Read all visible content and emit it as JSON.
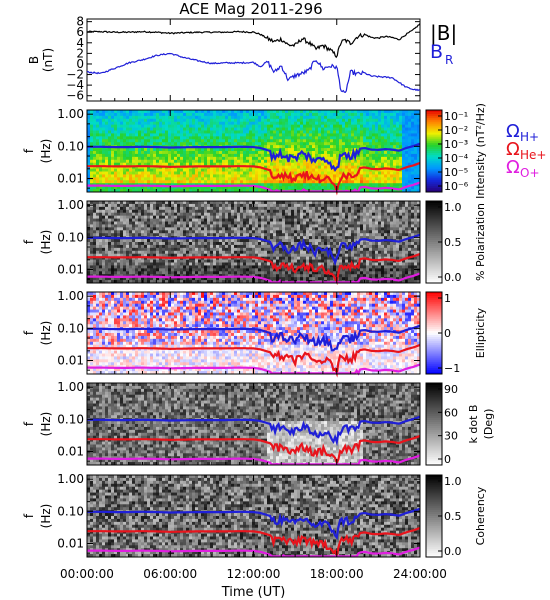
{
  "title": "ACE Mag 2011-296",
  "colors": {
    "black": "#000000",
    "blue": "#1f1fd8",
    "red": "#e8141c",
    "magenta": "#e01ee0"
  },
  "chart_data": [
    {
      "type": "line",
      "panel": "B",
      "ylabel_lines": [
        "B",
        "(nT)"
      ],
      "yticks": [
        "8",
        "6",
        "4",
        "2",
        "0",
        "−2",
        "−4",
        "−6"
      ],
      "ylim": [
        -7,
        8.5
      ],
      "legend": [
        "|B|",
        "B_R"
      ],
      "series": [
        {
          "name": "|B|",
          "color": "#000000",
          "x": [
            0,
            1,
            2,
            3,
            4,
            5,
            6,
            7,
            8,
            9,
            10,
            11,
            12,
            12.5,
            13,
            13.5,
            14,
            14.5,
            15,
            15.5,
            16,
            16.5,
            17,
            17.5,
            18,
            18.3,
            18.6,
            19,
            19.5,
            20,
            20.5,
            21,
            21.5,
            22,
            22.5,
            23,
            23.5,
            24
          ],
          "values": [
            6.1,
            6.1,
            6.0,
            6.0,
            6.1,
            6.0,
            5.8,
            5.9,
            6.0,
            6.0,
            6.0,
            6.1,
            6.0,
            5.6,
            4.8,
            4.2,
            4.7,
            3.6,
            3.5,
            4.8,
            4.0,
            2.8,
            3.5,
            2.7,
            1.5,
            4.1,
            4.5,
            3.9,
            5.2,
            5.6,
            5.0,
            4.9,
            5.2,
            5.0,
            4.6,
            5.6,
            6.4,
            7.6
          ]
        },
        {
          "name": "B_R",
          "color": "#1f1fd8",
          "x": [
            0,
            1,
            2,
            3,
            4,
            5,
            6,
            7,
            8,
            9,
            10,
            11,
            12,
            12.5,
            13,
            13.5,
            14,
            14.5,
            15,
            15.5,
            16,
            16.5,
            17,
            17.5,
            18,
            18.3,
            18.6,
            19,
            19.5,
            20,
            20.5,
            21,
            21.5,
            22,
            22.5,
            23,
            23.5,
            24
          ],
          "values": [
            -1.5,
            -1.8,
            -0.8,
            0.2,
            0.8,
            1.6,
            2.0,
            1.2,
            0.6,
            0.1,
            0.2,
            0.2,
            0.3,
            -0.5,
            0.5,
            -1.6,
            -0.3,
            -3.0,
            -2.2,
            -1.8,
            -1.2,
            0.9,
            -0.9,
            -0.4,
            -0.6,
            -4.9,
            -5.8,
            -1.5,
            -1.9,
            -1.7,
            -2.3,
            -2.4,
            -2.5,
            -2.6,
            -3.5,
            -4.4,
            -4.8,
            -5.0
          ]
        }
      ]
    },
    {
      "type": "heatmap",
      "panel": "Intensity",
      "ylabel_lines": [
        "f",
        "(Hz)"
      ],
      "yticks": [
        "1.00",
        "0.10",
        "0.01"
      ],
      "colorbar_label": "Intensity (nT²/Hz)",
      "colorbar_ticks": [
        "10⁻¹",
        "10⁻²",
        "10⁻³",
        "10⁻⁴",
        "10⁻⁵",
        "10⁻⁶"
      ],
      "colorbar_type": "spectral"
    },
    {
      "type": "heatmap",
      "panel": "Polarization",
      "ylabel_lines": [
        "f",
        "(Hz)"
      ],
      "yticks": [
        "1.00",
        "0.10",
        "0.01"
      ],
      "colorbar_label": "% Polarization",
      "colorbar_ticks": [
        "1.0",
        "0.5",
        "0.0"
      ],
      "colorbar_type": "gray"
    },
    {
      "type": "heatmap",
      "panel": "Ellipticity",
      "ylabel_lines": [
        "f",
        "(Hz)"
      ],
      "yticks": [
        "1.00",
        "0.10",
        "0.01"
      ],
      "colorbar_label": "Ellipticity",
      "colorbar_ticks": [
        "1",
        "0",
        "−1"
      ],
      "colorbar_type": "redblue"
    },
    {
      "type": "heatmap",
      "panel": "kdotB",
      "ylabel_lines": [
        "f",
        "(Hz)"
      ],
      "yticks": [
        "1.00",
        "0.10",
        "0.01"
      ],
      "colorbar_label_lines": [
        "k dot B",
        "(Deg)"
      ],
      "colorbar_ticks": [
        "90",
        "60",
        "30",
        "0"
      ],
      "colorbar_type": "gray"
    },
    {
      "type": "heatmap",
      "panel": "Coherency",
      "ylabel_lines": [
        "f",
        "(Hz)"
      ],
      "yticks": [
        "1.00",
        "0.10",
        "0.01"
      ],
      "colorbar_label": "Coherency",
      "colorbar_ticks": [
        "1.0",
        "0.5",
        "0.0"
      ],
      "colorbar_type": "gray"
    }
  ],
  "gyro_lines": {
    "legend": [
      {
        "label": "Ω",
        "sub": "H+",
        "color": "#1f1fd8"
      },
      {
        "label": "Ω",
        "sub": "He+",
        "color": "#e8141c"
      },
      {
        "label": "Ω",
        "sub": "O+",
        "color": "#e01ee0"
      }
    ]
  },
  "x_axis": {
    "ticks": [
      "00:00:00",
      "06:00:00",
      "12:00:00",
      "18:00:00",
      "24:00:00"
    ],
    "label": "Time (UT)",
    "range_hours": [
      0,
      24
    ]
  }
}
